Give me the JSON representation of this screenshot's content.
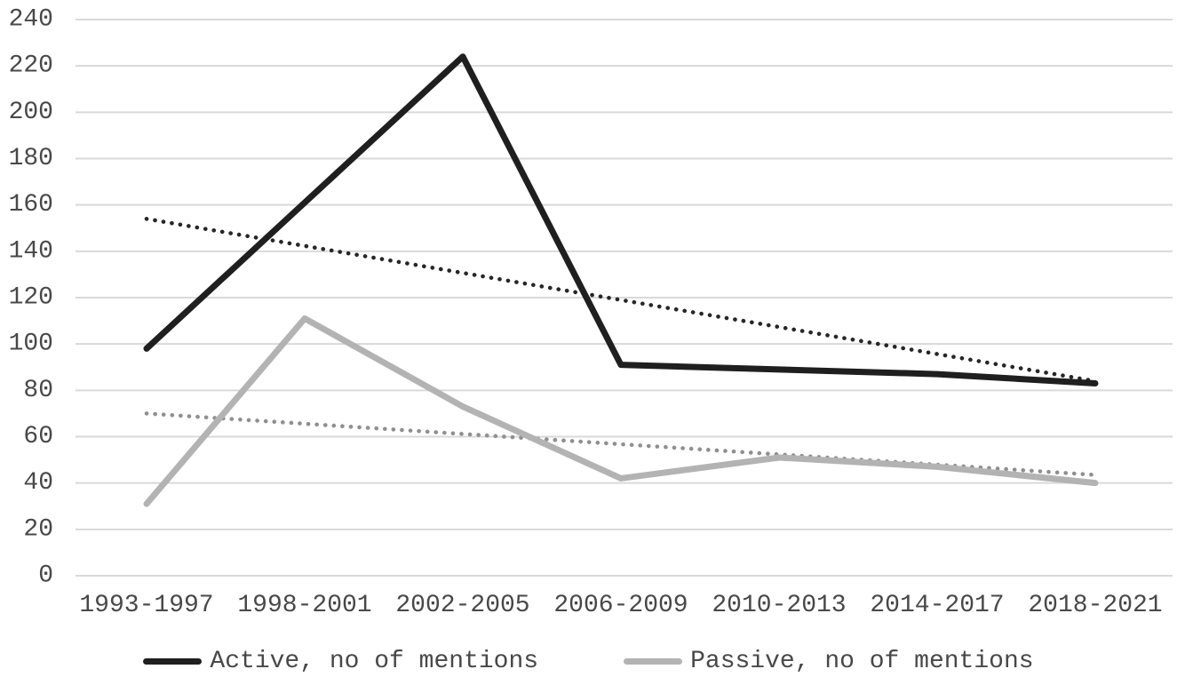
{
  "chart_data": {
    "type": "line",
    "categories": [
      "1993-1997",
      "1998-2001",
      "2002-2005",
      "2006-2009",
      "2010-2013",
      "2014-2017",
      "2018-2021"
    ],
    "series": [
      {
        "name": "Active, no of mentions",
        "values": [
          98,
          161,
          224,
          91,
          89,
          87,
          83
        ],
        "color": "#1f1f1f",
        "style": "solid"
      },
      {
        "name": "Passive, no of mentions",
        "values": [
          31,
          111,
          73,
          42,
          51,
          47,
          40
        ],
        "color": "#b3b3b3",
        "style": "solid"
      }
    ],
    "trendlines": [
      {
        "for": "Active, no of mentions",
        "start": 154,
        "end": 84,
        "color": "#262626",
        "style": "dotted"
      },
      {
        "for": "Passive, no of mentions",
        "start": 70,
        "end": 43.5,
        "color": "#8f8f8f",
        "style": "dotted"
      }
    ],
    "title": "",
    "xlabel": "",
    "ylabel": "",
    "ylim": [
      0,
      240
    ],
    "ytick_step": 20,
    "ytick_labels": [
      "0",
      "20",
      "40",
      "60",
      "80",
      "100",
      "120",
      "140",
      "160",
      "180",
      "200",
      "220",
      "240"
    ],
    "grid": "horizontal",
    "gridline_color": "#d9d9d9",
    "axis_text_color": "#484848",
    "legend_position": "bottom"
  }
}
